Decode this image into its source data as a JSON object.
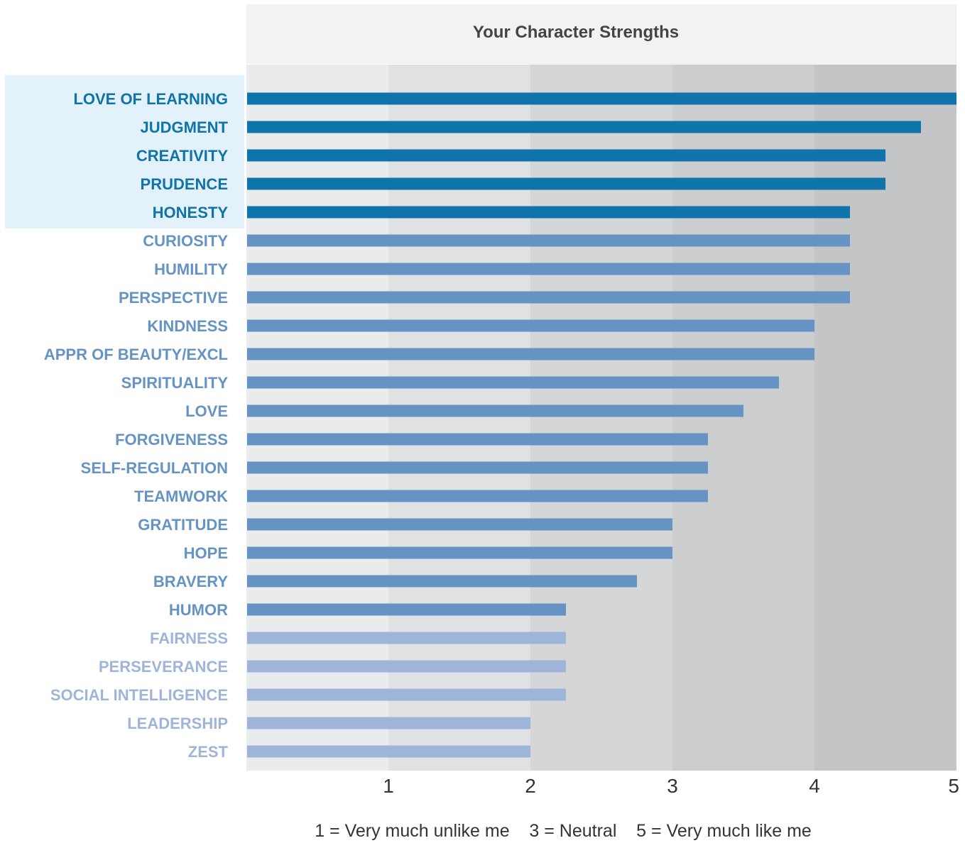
{
  "chart_data": {
    "type": "bar",
    "orientation": "horizontal",
    "title": "Your Character Strengths",
    "categories": [
      "LOVE OF LEARNING",
      "JUDGMENT",
      "CREATIVITY",
      "PRUDENCE",
      "HONESTY",
      "CURIOSITY",
      "HUMILITY",
      "PERSPECTIVE",
      "KINDNESS",
      "APPR OF BEAUTY/EXCL",
      "SPIRITUALITY",
      "LOVE",
      "FORGIVENESS",
      "SELF-REGULATION",
      "TEAMWORK",
      "GRATITUDE",
      "HOPE",
      "BRAVERY",
      "HUMOR",
      "FAIRNESS",
      "PERSEVERANCE",
      "SOCIAL INTELLIGENCE",
      "LEADERSHIP",
      "ZEST"
    ],
    "values": [
      5,
      4.75,
      4.5,
      4.5,
      4.25,
      4.25,
      4.25,
      4.25,
      4,
      4,
      3.75,
      3.5,
      3.25,
      3.25,
      3.25,
      3,
      3,
      2.75,
      2.25,
      2.25,
      2.25,
      2.25,
      2,
      2
    ],
    "tiers": [
      "top",
      "top",
      "top",
      "top",
      "top",
      "mid",
      "mid",
      "mid",
      "mid",
      "mid",
      "mid",
      "mid",
      "mid",
      "mid",
      "mid",
      "mid",
      "mid",
      "mid",
      "mid",
      "low",
      "low",
      "low",
      "low",
      "low"
    ],
    "xlim": [
      0,
      5
    ],
    "xticks": [
      "1",
      "2",
      "3",
      "4",
      "5"
    ],
    "xlabel": "",
    "ylabel": "",
    "grid": "alternating shaded column bands",
    "footer": "1 = Very much unlike me    3 = Neutral    5 = Very much like me",
    "colors": {
      "top_bar": "#0f74aa",
      "mid_bar": "#6593c3",
      "low_bar": "#9eb5d9",
      "top_label": "#0f74aa",
      "mid_label": "#6593c3",
      "low_label": "#9eb5d9",
      "highlight_bg": "#e3f1fa",
      "title_bg": "#f1f2f4",
      "bands": [
        "#eaebed",
        "#e0e1e3",
        "#d5d6d8",
        "#cccdcf",
        "#c4c5c7"
      ]
    }
  }
}
